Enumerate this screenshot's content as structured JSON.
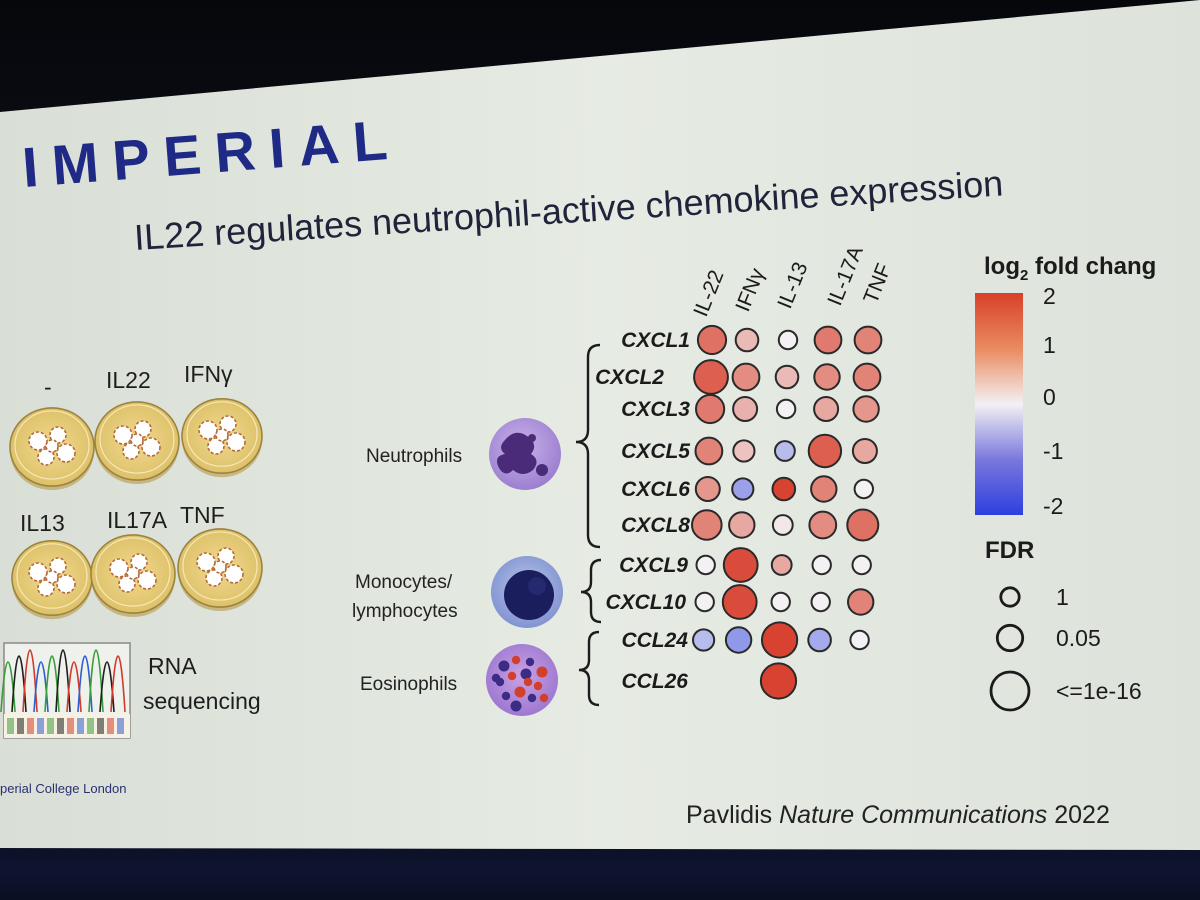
{
  "logo": {
    "text": "IMPERIAL"
  },
  "title": "IL22 regulates neutrophil-active chemokine expression",
  "footer_logo_text": "perial College London",
  "citation": {
    "author": "Pavlidis",
    "journal": "Nature Communications",
    "year": "2022"
  },
  "dishes": [
    "-",
    "IL22",
    "IFNγ",
    "IL13",
    "IL17A",
    "TNF"
  ],
  "rna_label": [
    "RNA",
    "sequencing"
  ],
  "cell_types": [
    {
      "label": [
        "Neutrophils"
      ],
      "icon": "neutrophil-icon"
    },
    {
      "label": [
        "Monocytes/",
        "lymphocytes"
      ],
      "icon": "monocyte-icon"
    },
    {
      "label": [
        "Eosinophils"
      ],
      "icon": "eosinophil-icon"
    }
  ],
  "chart_data": {
    "type": "dot-matrix",
    "columns": [
      "IL-22",
      "IFNγ",
      "IL-13",
      "IL-17A",
      "TNF"
    ],
    "rows": [
      "CXCL1",
      "CXCL2",
      "CXCL3",
      "CXCL5",
      "CXCL6",
      "CXCL8",
      "CXCL9",
      "CXCL10",
      "CCL24",
      "CCL26"
    ],
    "log2fc": [
      [
        1.4,
        0.6,
        0.0,
        1.3,
        1.2
      ],
      [
        1.6,
        1.1,
        0.6,
        1.1,
        1.2
      ],
      [
        1.3,
        0.7,
        0.0,
        0.8,
        1.0
      ],
      [
        1.2,
        0.5,
        -0.6,
        1.6,
        0.8
      ],
      [
        1.0,
        -0.9,
        1.9,
        1.2,
        0.0
      ],
      [
        1.2,
        0.8,
        0.1,
        1.1,
        1.4
      ],
      [
        0.0,
        1.8,
        0.8,
        0.0,
        0.0
      ],
      [
        0.0,
        1.8,
        0.0,
        0.0,
        1.2
      ],
      [
        -0.6,
        -1.0,
        1.9,
        -0.8,
        0.0
      ],
      [
        null,
        null,
        1.9,
        null,
        null
      ]
    ],
    "fdr_size": [
      [
        0.65,
        0.45,
        0.3,
        0.6,
        0.6
      ],
      [
        0.85,
        0.6,
        0.45,
        0.55,
        0.6
      ],
      [
        0.65,
        0.5,
        0.3,
        0.5,
        0.55
      ],
      [
        0.6,
        0.4,
        0.35,
        0.8,
        0.5
      ],
      [
        0.5,
        0.4,
        0.45,
        0.55,
        0.3
      ],
      [
        0.7,
        0.55,
        0.35,
        0.6,
        0.75
      ],
      [
        0.3,
        0.85,
        0.35,
        0.3,
        0.3
      ],
      [
        0.3,
        0.85,
        0.3,
        0.3,
        0.55
      ],
      [
        0.4,
        0.55,
        0.9,
        0.45,
        0.3
      ],
      [
        null,
        null,
        0.9,
        null,
        null
      ]
    ],
    "row_groups": [
      {
        "cell": "Neutrophils",
        "rows": [
          0,
          5
        ]
      },
      {
        "cell": "Monocytes/lymphocytes",
        "rows": [
          6,
          7
        ]
      },
      {
        "cell": "Eosinophils",
        "rows": [
          8,
          9
        ]
      }
    ],
    "colorbar": {
      "title_prefix": "log",
      "title_sub": "2",
      "title_suffix": " fold chang",
      "range": [
        -2,
        2
      ],
      "ticks": [
        "2",
        "1",
        "0",
        "-1",
        "-2"
      ]
    },
    "size_legend": {
      "title": "FDR",
      "labels": [
        "1",
        "0.05",
        "<=1e-16"
      ],
      "levels": [
        0.3,
        0.55,
        1.0
      ]
    }
  }
}
